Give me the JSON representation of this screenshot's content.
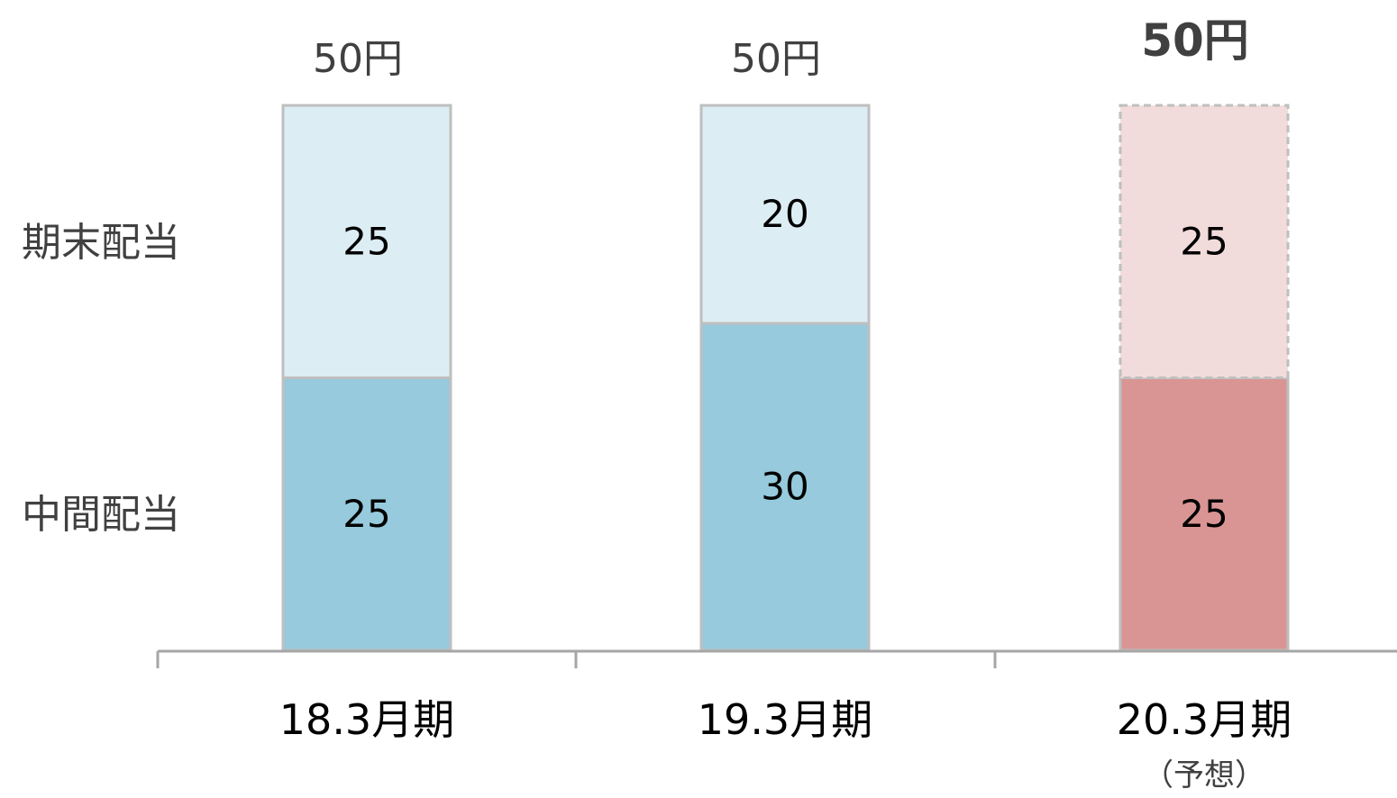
{
  "chart_data": {
    "type": "bar",
    "stacked": true,
    "categories": [
      "18.3月期",
      "19.3月期",
      "20.3月期"
    ],
    "category_notes": [
      "",
      "",
      "（予想）"
    ],
    "series": [
      {
        "name": "中間配当",
        "values": [
          25,
          30,
          25
        ]
      },
      {
        "name": "期末配当",
        "values": [
          25,
          20,
          25
        ]
      }
    ],
    "totals": [
      "50円",
      "50円",
      "50円"
    ],
    "forecast_category_index": 2,
    "ylim": [
      0,
      50
    ],
    "grid": false,
    "legend_placement": "left",
    "colors": {
      "interim_actual": "#96CADC",
      "year_end_actual": "#DCEDF3",
      "interim_forecast": "#D99594",
      "year_end_forecast": "#F2DCDB",
      "bar_border": "#BFBFBF",
      "axis": "#A6A6A6",
      "total_text": "#404040",
      "legend_text": "#404040",
      "value_text": "#000000"
    }
  }
}
